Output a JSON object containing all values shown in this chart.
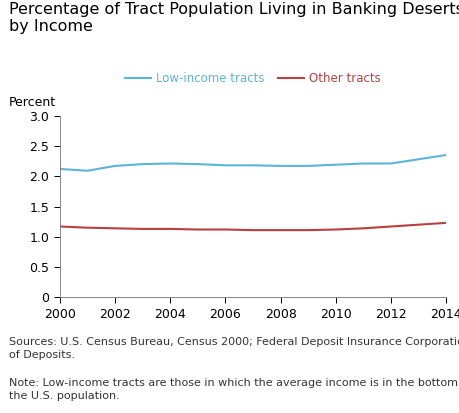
{
  "title_line1": "Percentage of Tract Population Living in Banking Deserts,",
  "title_line2": "by Income",
  "ylabel": "Percent",
  "xlim": [
    2000,
    2014
  ],
  "ylim": [
    0,
    3.0
  ],
  "yticks": [
    0,
    0.5,
    1.0,
    1.5,
    2.0,
    2.5,
    3.0
  ],
  "xticks": [
    2000,
    2002,
    2004,
    2006,
    2008,
    2010,
    2012,
    2014
  ],
  "low_income_x": [
    2000,
    2001,
    2002,
    2003,
    2004,
    2005,
    2006,
    2007,
    2008,
    2009,
    2010,
    2011,
    2012,
    2013,
    2014
  ],
  "low_income_y": [
    2.12,
    2.09,
    2.17,
    2.2,
    2.21,
    2.2,
    2.18,
    2.18,
    2.17,
    2.17,
    2.19,
    2.21,
    2.21,
    2.28,
    2.35
  ],
  "other_x": [
    2000,
    2001,
    2002,
    2003,
    2004,
    2005,
    2006,
    2007,
    2008,
    2009,
    2010,
    2011,
    2012,
    2013,
    2014
  ],
  "other_y": [
    1.17,
    1.15,
    1.14,
    1.13,
    1.13,
    1.12,
    1.12,
    1.11,
    1.11,
    1.11,
    1.12,
    1.14,
    1.17,
    1.2,
    1.23
  ],
  "low_income_color": "#5bb4d9",
  "other_color": "#b94040",
  "low_income_label": "Low-income tracts",
  "other_label": "Other tracts",
  "source_text": "Sources: U.S. Census Bureau, Census 2000; Federal Deposit Insurance Corporation, Summary of Deposits.",
  "note_text": "Note: Low-income tracts are those in which the average income is in the bottom quartile for the U.S. population.",
  "background_color": "#ffffff",
  "line_width": 1.5,
  "title_fontsize": 11.5,
  "tick_fontsize": 9,
  "footer_fontsize": 8
}
